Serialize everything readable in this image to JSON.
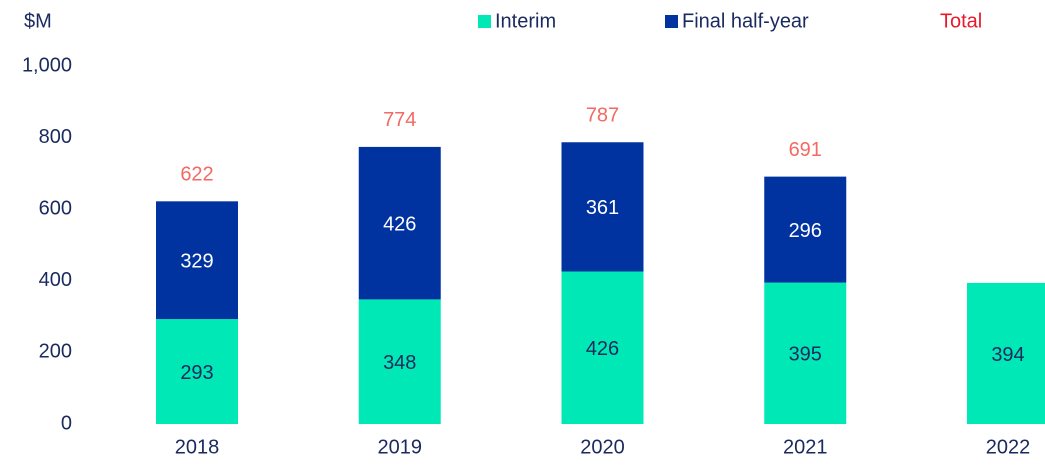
{
  "chart_data": {
    "type": "stacked_bar",
    "unit_label": "$M",
    "categories": [
      "2018",
      "2019",
      "2020",
      "2021",
      "2022"
    ],
    "series": [
      {
        "name": "Interim",
        "color": "#00e8b5",
        "label_color": "#1b2a5e",
        "values": [
          293,
          348,
          426,
          395,
          394
        ]
      },
      {
        "name": "Final half-year",
        "color": "#0033a0",
        "label_color": "#ffffff",
        "values": [
          329,
          426,
          361,
          296,
          null
        ]
      }
    ],
    "totals_name": "Total",
    "totals_name_color": "#e8192c",
    "totals_color": "#f26a63",
    "totals": [
      622,
      774,
      787,
      691,
      null
    ],
    "ylim": [
      0,
      1000
    ],
    "yticks": [
      0,
      200,
      400,
      {
        "value": 600,
        "label": "600"
      },
      800,
      {
        "value": 1000,
        "label": "1,000"
      }
    ]
  }
}
